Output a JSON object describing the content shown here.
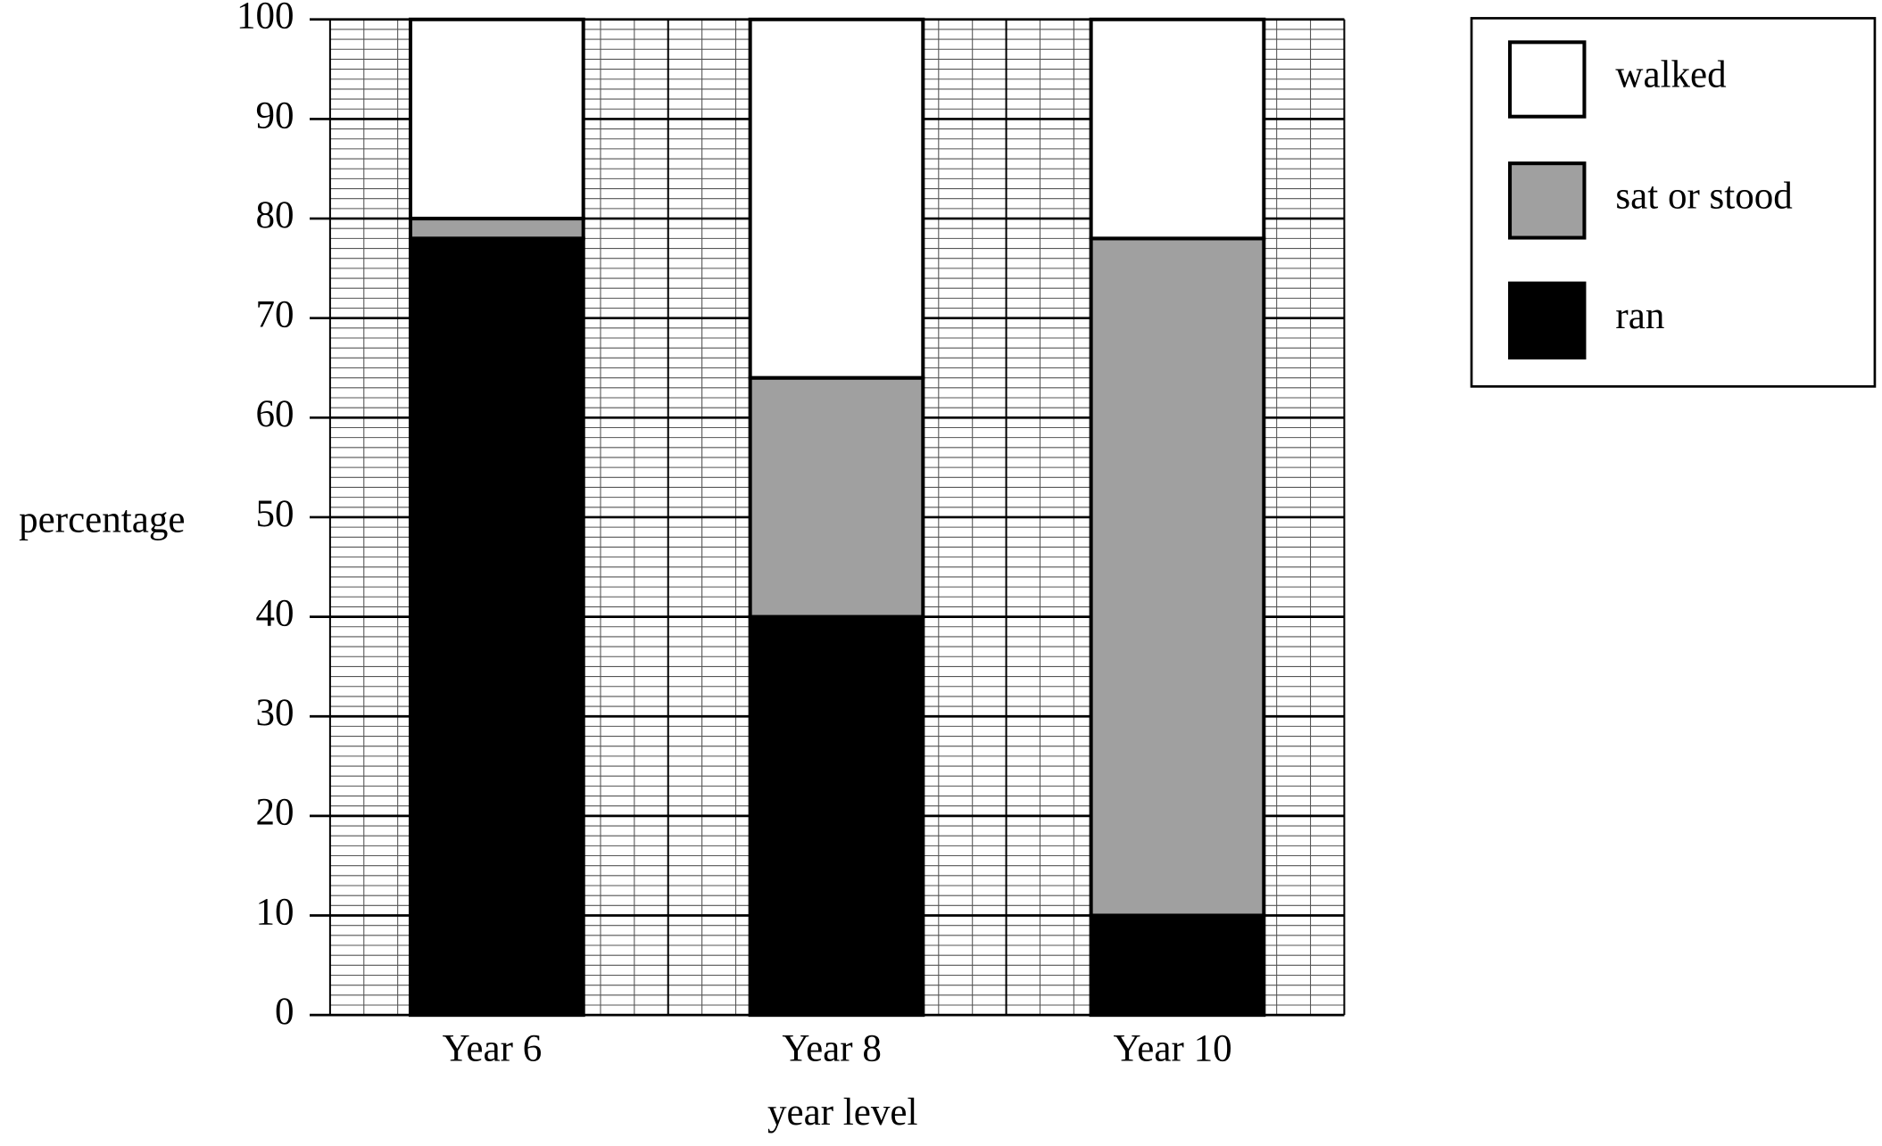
{
  "chart_data": {
    "type": "stacked_bar",
    "x_label": "year level",
    "y_label": "percentage",
    "categories": [
      "Year 6",
      "Year 8",
      "Year 10"
    ],
    "series": [
      {
        "name": "ran",
        "color": "#000000",
        "values": [
          78,
          40,
          10
        ]
      },
      {
        "name": "sat or stood",
        "color": "#a0a0a0",
        "values": [
          2,
          24,
          68
        ]
      },
      {
        "name": "walked",
        "color": "#ffffff",
        "values": [
          20,
          36,
          22
        ]
      }
    ],
    "ylim": [
      0,
      100
    ],
    "yticks": [
      0,
      10,
      20,
      30,
      40,
      50,
      60,
      70,
      80,
      90,
      100
    ],
    "grid": true,
    "legend": "upper right"
  }
}
